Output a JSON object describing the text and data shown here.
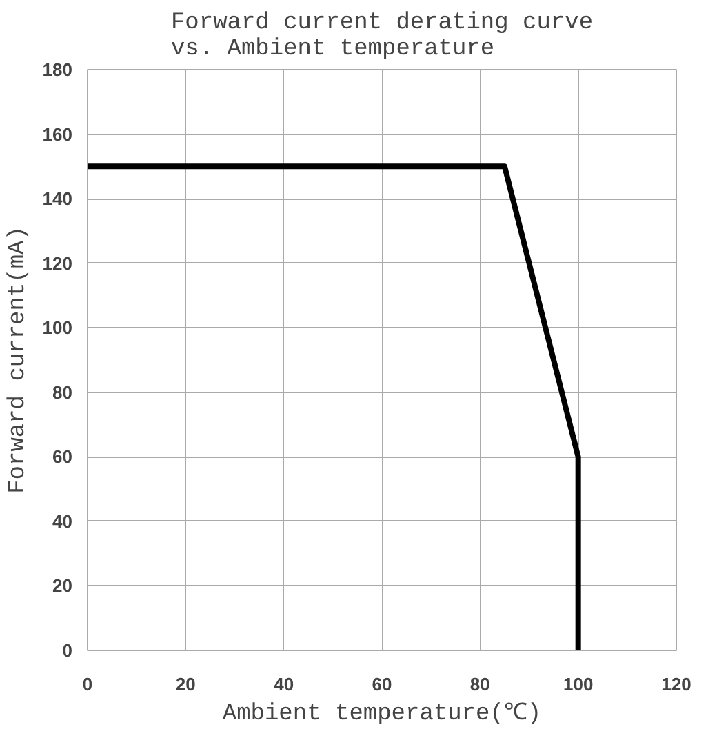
{
  "chart_data": {
    "type": "line",
    "title": "Forward current derating curve\nvs. Ambient temperature",
    "xlabel": "Ambient temperature(℃)",
    "ylabel": "Forward current(mA)",
    "x": [
      0,
      85,
      100,
      100
    ],
    "series": [
      {
        "color": "#000000",
        "values": [
          150,
          150,
          60,
          0
        ]
      }
    ],
    "xlim": [
      0,
      120
    ],
    "ylim": [
      0,
      180
    ],
    "xticks": [
      0,
      20,
      40,
      60,
      80,
      100,
      120
    ],
    "yticks": [
      0,
      20,
      40,
      60,
      80,
      100,
      120,
      140,
      160,
      180
    ],
    "grid": true,
    "line_style": "solid"
  }
}
